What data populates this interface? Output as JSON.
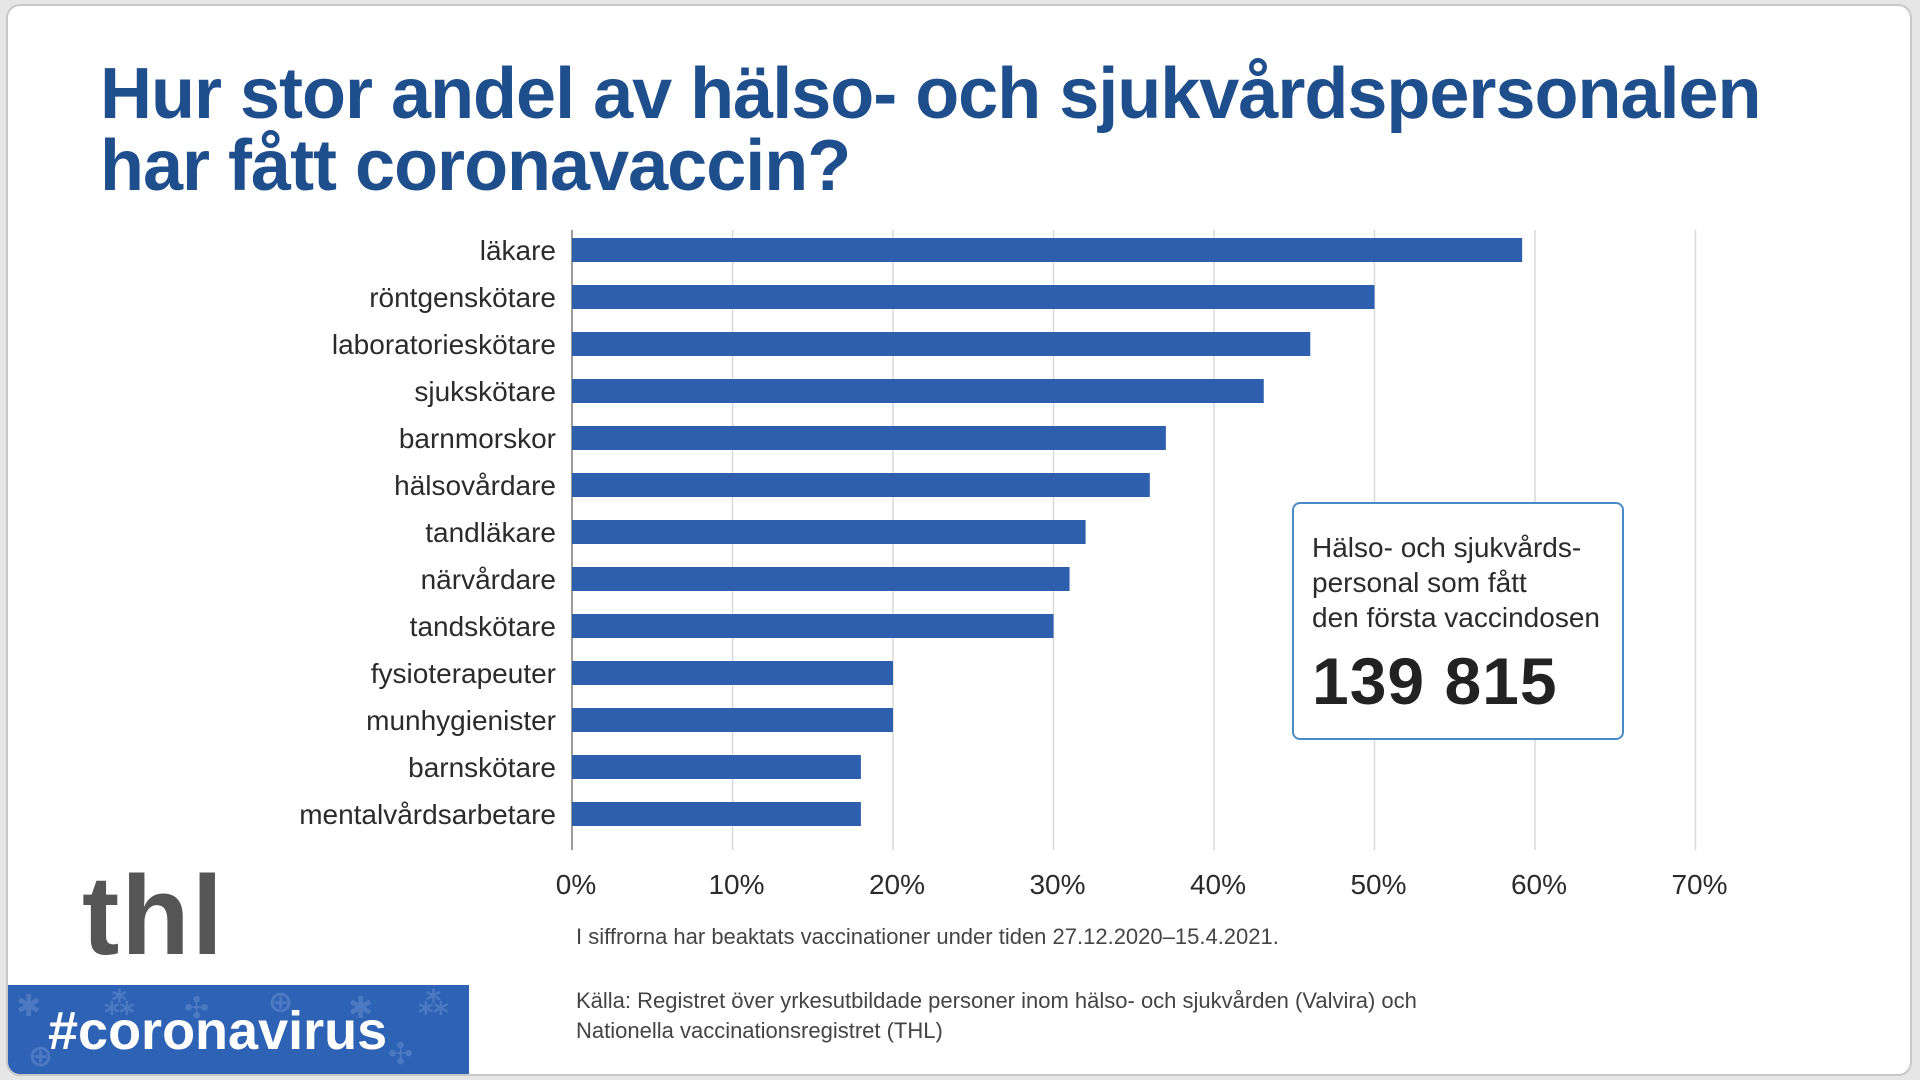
{
  "title": {
    "line1": "Hur stor andel av hälso- och sjukvårdspersonalen",
    "line2": "har fått coronavaccin?"
  },
  "chart_data": {
    "type": "bar",
    "orientation": "horizontal",
    "categories": [
      "läkare",
      "röntgenskötare",
      "laboratorieskötare",
      "sjukskötare",
      "barnmorskor",
      "hälsovårdare",
      "tandläkare",
      "närvårdare",
      "tandskötare",
      "fysioterapeuter",
      "munhygienister",
      "barnskötare",
      "mentalvårdsarbetare"
    ],
    "values": [
      59.2,
      50,
      46,
      43.1,
      37,
      36,
      32,
      31,
      30,
      20,
      20,
      18,
      18
    ],
    "xlim": [
      0,
      70
    ],
    "xticks": [
      0,
      10,
      20,
      30,
      40,
      50,
      60,
      70
    ],
    "tick_labels": [
      "0%",
      "10%",
      "20%",
      "30%",
      "40%",
      "50%",
      "60%",
      "70%"
    ],
    "grid": "vertical",
    "bar_color": "#2d5fae"
  },
  "infobox": {
    "line1": "Hälso- och sjukvårds-",
    "line2": "personal som fått",
    "line3": "den första vaccindosen",
    "number": "139 815"
  },
  "footnote": "I siffrorna har beaktats vaccinationer under tiden 27.12.2020–15.4.2021.",
  "source": {
    "line1": "Källa: Registret över yrkesutbildade personer inom hälso- och sjukvården (Valvira) och",
    "line2": "Nationella vaccinationsregistret (THL)"
  },
  "logo": "thl",
  "hashtag": "#coronavirus",
  "colors": {
    "title": "#1f4e8c",
    "bar": "#2d5fae",
    "banner": "#2e62b4",
    "box_border": "#4a8ac6"
  }
}
